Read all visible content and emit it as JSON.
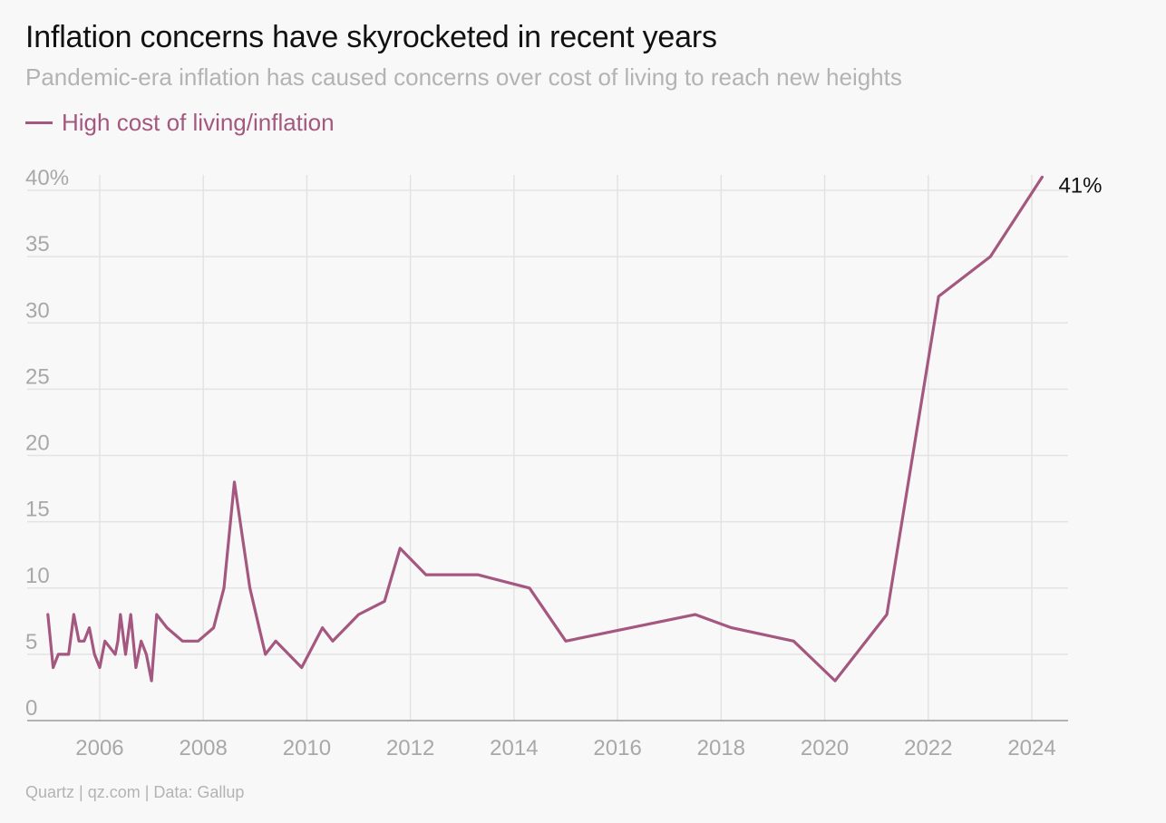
{
  "title": "Inflation concerns have skyrocketed in recent years",
  "subtitle": "Pandemic-era inflation has caused concerns over cost of living to reach new heights",
  "source": "Quartz | qz.com | Data: Gallup",
  "colors": {
    "series": "#a4577f",
    "grid": "#e3e3e3",
    "axis": "#9a9a9a",
    "tick_text": "#a8a8a8"
  },
  "chart_data": {
    "type": "line",
    "title": "Inflation concerns have skyrocketed in recent years",
    "subtitle": "Pandemic-era inflation has caused concerns over cost of living to reach new heights",
    "xlabel": "",
    "ylabel": "",
    "xlim": [
      2004.6,
      2024.7
    ],
    "ylim": [
      0,
      40
    ],
    "grid": true,
    "legend_position": "top-left",
    "y_ticks": [
      0,
      5,
      10,
      15,
      20,
      25,
      30,
      35,
      40
    ],
    "y_tick_labels": [
      "0",
      "5",
      "10",
      "15",
      "20",
      "25",
      "30",
      "35",
      "40%"
    ],
    "x_ticks": [
      2006,
      2008,
      2010,
      2012,
      2014,
      2016,
      2018,
      2020,
      2022,
      2024
    ],
    "x_tick_labels": [
      "2006",
      "2008",
      "2010",
      "2012",
      "2014",
      "2016",
      "2018",
      "2020",
      "2022",
      "2024"
    ],
    "series": [
      {
        "name": "High cost of living/inflation",
        "end_label": "41%",
        "x": [
          2005.0,
          2005.1,
          2005.2,
          2005.4,
          2005.5,
          2005.6,
          2005.7,
          2005.8,
          2005.9,
          2006.0,
          2006.1,
          2006.3,
          2006.35,
          2006.4,
          2006.5,
          2006.6,
          2006.7,
          2006.8,
          2006.9,
          2007.0,
          2007.1,
          2007.3,
          2007.6,
          2007.9,
          2008.2,
          2008.4,
          2008.6,
          2008.9,
          2009.2,
          2009.4,
          2009.9,
          2010.3,
          2010.5,
          2011.0,
          2011.5,
          2011.8,
          2012.3,
          2013.3,
          2014.3,
          2015.0,
          2017.5,
          2018.2,
          2019.4,
          2020.2,
          2021.2,
          2022.2,
          2023.2,
          2024.2
        ],
        "values": [
          8,
          4,
          5,
          5,
          8,
          6,
          6,
          7,
          5,
          4,
          6,
          5,
          6,
          8,
          5,
          8,
          4,
          6,
          5,
          3,
          8,
          7,
          6,
          6,
          7,
          10,
          18,
          10,
          5,
          6,
          4,
          7,
          6,
          8,
          9,
          13,
          11,
          11,
          10,
          6,
          8,
          7,
          6,
          3,
          8,
          32,
          35,
          41
        ]
      }
    ]
  }
}
